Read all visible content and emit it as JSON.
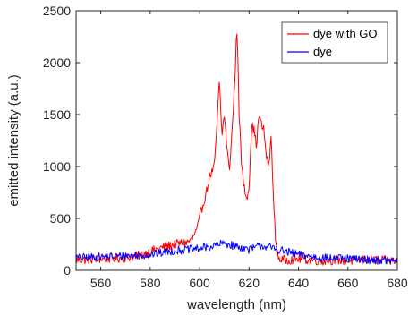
{
  "chart_data": {
    "type": "line",
    "title": "",
    "xlabel": "wavelength (nm)",
    "ylabel": "emitted intensity (a.u.)",
    "xlim": [
      550,
      680
    ],
    "ylim": [
      0,
      2500
    ],
    "x_ticks": [
      560,
      580,
      600,
      620,
      640,
      660,
      680
    ],
    "y_ticks": [
      0,
      500,
      1000,
      1500,
      2000,
      2500
    ],
    "grid": false,
    "legend_position": "top-right",
    "series": [
      {
        "name": "dye with GO",
        "color": "#ff0000",
        "noise": 45,
        "x": [
          550,
          560,
          570,
          575,
          580,
          585,
          590,
          595,
          597,
          599,
          601,
          603,
          604,
          605,
          606,
          607,
          608,
          609,
          610,
          611,
          612,
          613,
          614,
          615,
          615.5,
          616,
          617,
          618,
          619,
          620,
          621,
          622,
          623,
          624,
          625,
          626,
          627,
          628,
          629,
          630,
          631,
          632,
          633,
          635,
          640,
          645,
          650,
          655,
          660,
          665,
          670,
          675,
          680
        ],
        "values": [
          100,
          110,
          120,
          140,
          180,
          220,
          250,
          270,
          300,
          400,
          600,
          780,
          900,
          950,
          1000,
          1400,
          1830,
          1300,
          1500,
          1200,
          950,
          1300,
          1700,
          2300,
          2100,
          1500,
          1000,
          800,
          700,
          800,
          1400,
          1350,
          1200,
          1500,
          1400,
          1350,
          1100,
          1000,
          1300,
          600,
          200,
          120,
          100,
          100,
          110,
          100,
          90,
          100,
          90,
          100,
          100,
          95,
          90
        ]
      },
      {
        "name": "dye",
        "color": "#0000ff",
        "noise": 40,
        "x": [
          550,
          560,
          570,
          580,
          590,
          600,
          605,
          610,
          615,
          620,
          625,
          630,
          640,
          650,
          660,
          670,
          680
        ],
        "values": [
          120,
          130,
          140,
          150,
          190,
          210,
          230,
          260,
          230,
          200,
          240,
          210,
          150,
          120,
          110,
          100,
          90
        ]
      }
    ]
  }
}
